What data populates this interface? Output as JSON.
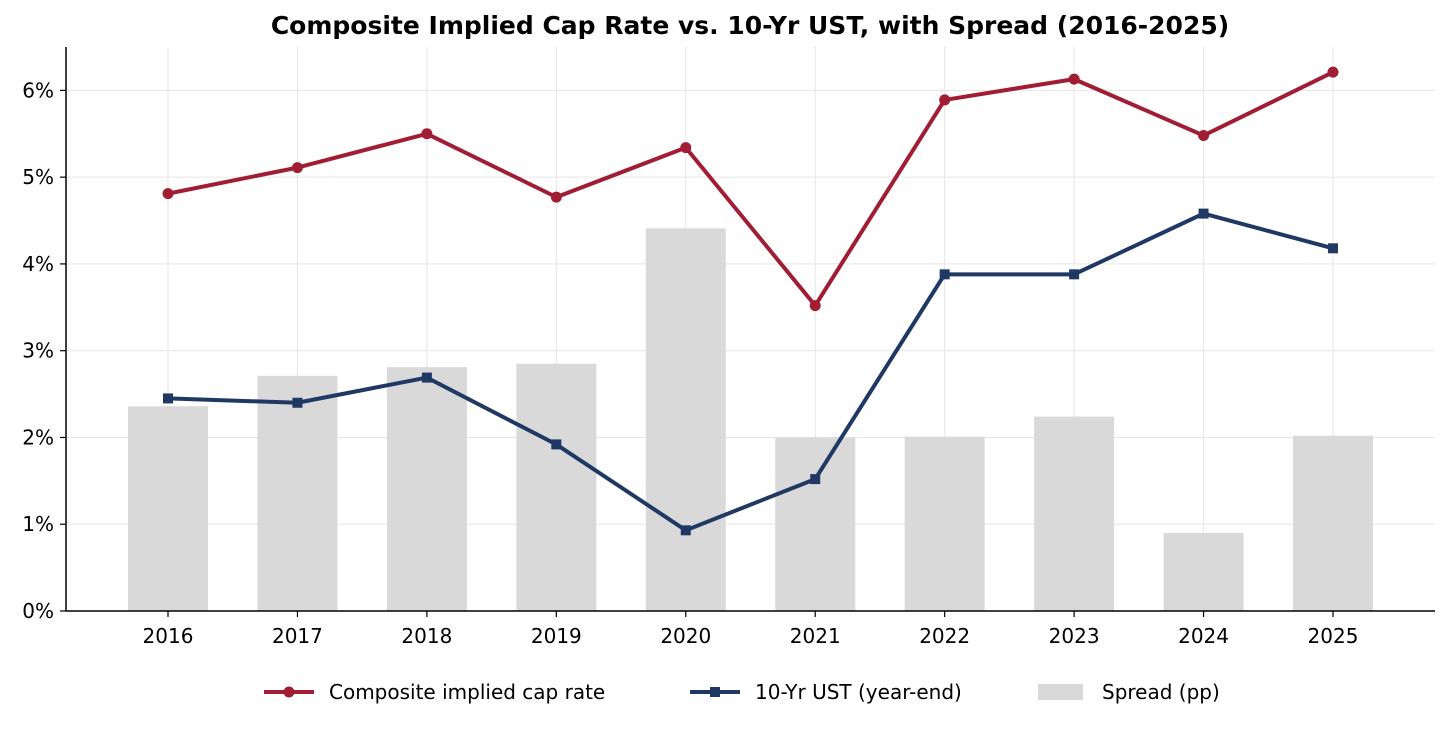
{
  "chart_data": {
    "type": "bar",
    "title": "Composite Implied Cap Rate vs. 10-Yr UST, with Spread (2016-2025)",
    "xlabel": "",
    "ylabel": "",
    "categories": [
      "2016",
      "2017",
      "2018",
      "2019",
      "2020",
      "2021",
      "2022",
      "2023",
      "2024",
      "2025"
    ],
    "ylim": [
      0,
      6.5
    ],
    "yticks": [
      0,
      1,
      2,
      3,
      4,
      5,
      6
    ],
    "ytick_labels": [
      "0%",
      "1%",
      "2%",
      "3%",
      "4%",
      "5%",
      "6%"
    ],
    "grid": true,
    "legend_position": "bottom-center",
    "series": [
      {
        "name": "Spread (pp)",
        "kind": "bar",
        "color": "#d9d9d9",
        "values": [
          2.36,
          2.71,
          2.81,
          2.85,
          4.41,
          2.0,
          2.01,
          2.24,
          0.9,
          2.02
        ]
      },
      {
        "name": "Composite implied cap rate",
        "kind": "line",
        "marker": "circle",
        "color": "#a11d33",
        "values": [
          4.81,
          5.11,
          5.5,
          4.77,
          5.34,
          3.52,
          5.89,
          6.13,
          5.48,
          6.21
        ]
      },
      {
        "name": "10-Yr UST (year-end)",
        "kind": "line",
        "marker": "square",
        "color": "#1f3864",
        "values": [
          2.45,
          2.4,
          2.69,
          1.92,
          0.93,
          1.52,
          3.88,
          3.88,
          4.58,
          4.18
        ]
      }
    ]
  }
}
